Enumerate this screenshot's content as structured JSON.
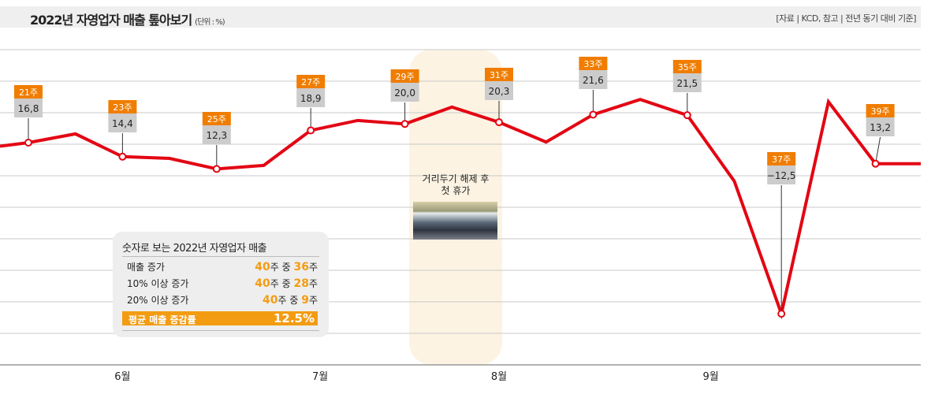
{
  "header": {
    "title": "2022년 자영업자 매출 톺아보기",
    "unit": "(단위 : %)",
    "source": "[자료 | KCD, 참고 | 전년 동기 대비 기준]"
  },
  "colors": {
    "line": "#e30613",
    "week_label": "#f07d00",
    "value_label": "#cccccc",
    "highlight": "#fdf3e3",
    "accent": "#f39c12"
  },
  "highlight": {
    "text_line1": "거리두기 해제 후",
    "text_line2": "첫 휴가",
    "image": "crowd-photo"
  },
  "chart_data": {
    "type": "line",
    "x": [
      20,
      21,
      22,
      23,
      24,
      25,
      26,
      27,
      28,
      29,
      30,
      31,
      32,
      33,
      34,
      35,
      36,
      37,
      38,
      39,
      40
    ],
    "values": [
      16.2,
      16.8,
      18.3,
      14.4,
      14.1,
      12.3,
      12.9,
      18.9,
      20.6,
      20.0,
      22.9,
      20.3,
      16.9,
      21.6,
      24.2,
      21.5,
      10.2,
      -12.5,
      23.8,
      13.2,
      13.2
    ],
    "xlabel": "",
    "ylabel": "",
    "months": [
      {
        "label": "6월",
        "week": 23
      },
      {
        "label": "7월",
        "week": 27.2
      },
      {
        "label": "8월",
        "week": 31
      },
      {
        "label": "9월",
        "week": 35.5
      }
    ],
    "annotations": [
      {
        "week": 21,
        "label": "21주",
        "value": "16,8"
      },
      {
        "week": 23,
        "label": "23주",
        "value": "14,4"
      },
      {
        "week": 25,
        "label": "25주",
        "value": "12,3"
      },
      {
        "week": 27,
        "label": "27주",
        "value": "18,9"
      },
      {
        "week": 29,
        "label": "29주",
        "value": "20,0"
      },
      {
        "week": 31,
        "label": "31주",
        "value": "20,3"
      },
      {
        "week": 33,
        "label": "33주",
        "value": "21,6"
      },
      {
        "week": 35,
        "label": "35주",
        "value": "21,5"
      },
      {
        "week": 37,
        "label": "37주",
        "value": "−12,5"
      },
      {
        "week": 39,
        "label": "39주",
        "value": "13,2"
      }
    ],
    "grid": true
  },
  "summary": {
    "title": "숫자로 보는 2022년 자영업자 매출",
    "rows": [
      {
        "label": "매출 증가",
        "total": "40",
        "mid": "주 중 ",
        "count": "36",
        "end": "주"
      },
      {
        "label": "10% 이상 증가",
        "total": "40",
        "mid": "주 중 ",
        "count": "28",
        "end": "주"
      },
      {
        "label": "20% 이상 증가",
        "total": "40",
        "mid": "주 중 ",
        "count": "9",
        "end": "주"
      }
    ],
    "avg_label": "평균 매출 증감률",
    "avg_value": "12.5%"
  }
}
